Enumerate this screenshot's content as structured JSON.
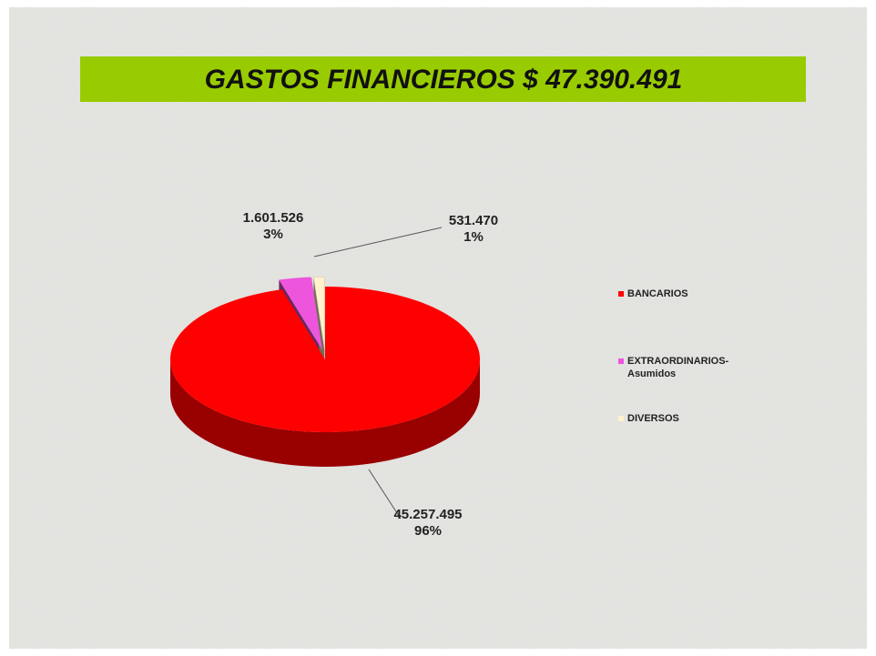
{
  "chart_data": {
    "type": "pie3d",
    "title": "GASTOS  FINANCIEROS $ 47.390.491",
    "categories": [
      "BANCARIOS",
      "EXTRAORDINARIOS-Asumidos",
      "DIVERSOS"
    ],
    "values": [
      45257495,
      1601526,
      531470
    ],
    "value_labels": [
      "45.257.495",
      "1.601.526",
      "531.470"
    ],
    "percent_labels": [
      "96%",
      "3%",
      "1%"
    ],
    "colors": [
      "#ff0000",
      "#ee55dd",
      "#fff2cc"
    ],
    "legend": "right"
  }
}
